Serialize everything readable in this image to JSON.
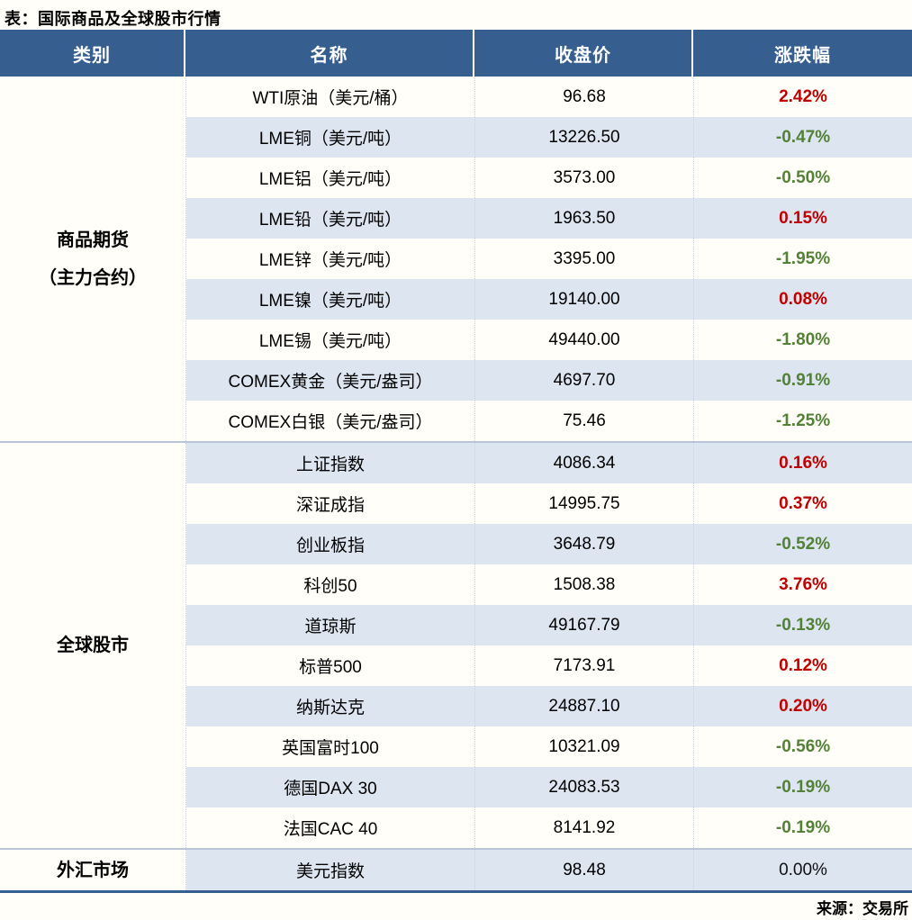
{
  "title": "表：国际商品及全球股市行情",
  "source": "来源：交易所",
  "colors": {
    "header_bg": "#365f8f",
    "stripe": "#dce5f0",
    "page_bg": "#fffef8",
    "up": "#c00000",
    "down": "#538135",
    "flat": "#111111",
    "bottom_border": "#365f91"
  },
  "table": {
    "headers": [
      "类别",
      "名称",
      "收盘价",
      "涨跌幅"
    ],
    "sections": [
      {
        "category_lines": [
          "商品期货",
          "（主力合约）"
        ],
        "rows": [
          {
            "name": "WTI原油（美元/桶）",
            "close": "96.68",
            "change": "2.42%",
            "dir": "up"
          },
          {
            "name": "LME铜（美元/吨）",
            "close": "13226.50",
            "change": "-0.47%",
            "dir": "down"
          },
          {
            "name": "LME铝（美元/吨）",
            "close": "3573.00",
            "change": "-0.50%",
            "dir": "down"
          },
          {
            "name": "LME铅（美元/吨）",
            "close": "1963.50",
            "change": "0.15%",
            "dir": "up"
          },
          {
            "name": "LME锌（美元/吨）",
            "close": "3395.00",
            "change": "-1.95%",
            "dir": "down"
          },
          {
            "name": "LME镍（美元/吨）",
            "close": "19140.00",
            "change": "0.08%",
            "dir": "up"
          },
          {
            "name": "LME锡（美元/吨）",
            "close": "49440.00",
            "change": "-1.80%",
            "dir": "down"
          },
          {
            "name": "COMEX黄金（美元/盎司）",
            "close": "4697.70",
            "change": "-0.91%",
            "dir": "down"
          },
          {
            "name": "COMEX白银（美元/盎司）",
            "close": "75.46",
            "change": "-1.25%",
            "dir": "down"
          }
        ]
      },
      {
        "category_lines": [
          "全球股市"
        ],
        "rows": [
          {
            "name": "上证指数",
            "close": "4086.34",
            "change": "0.16%",
            "dir": "up"
          },
          {
            "name": "深证成指",
            "close": "14995.75",
            "change": "0.37%",
            "dir": "up"
          },
          {
            "name": "创业板指",
            "close": "3648.79",
            "change": "-0.52%",
            "dir": "down"
          },
          {
            "name": "科创50",
            "close": "1508.38",
            "change": "3.76%",
            "dir": "up"
          },
          {
            "name": "道琼斯",
            "close": "49167.79",
            "change": "-0.13%",
            "dir": "down"
          },
          {
            "name": "标普500",
            "close": "7173.91",
            "change": "0.12%",
            "dir": "up"
          },
          {
            "name": "纳斯达克",
            "close": "24887.10",
            "change": "0.20%",
            "dir": "up"
          },
          {
            "name": "英国富时100",
            "close": "10321.09",
            "change": "-0.56%",
            "dir": "down"
          },
          {
            "name": "德国DAX 30",
            "close": "24083.53",
            "change": "-0.19%",
            "dir": "down"
          },
          {
            "name": "法国CAC 40",
            "close": "8141.92",
            "change": "-0.19%",
            "dir": "down"
          }
        ]
      },
      {
        "category_lines": [
          "外汇市场"
        ],
        "rows": [
          {
            "name": "美元指数",
            "close": "98.48",
            "change": "0.00%",
            "dir": "flat"
          }
        ]
      }
    ]
  },
  "chart_data": {
    "type": "table",
    "title": "表：国际商品及全球股市行情",
    "columns": [
      "类别",
      "名称",
      "收盘价",
      "涨跌幅"
    ],
    "rows": [
      [
        "商品期货（主力合约）",
        "WTI原油（美元/桶）",
        96.68,
        "2.42%"
      ],
      [
        "商品期货（主力合约）",
        "LME铜（美元/吨）",
        13226.5,
        "-0.47%"
      ],
      [
        "商品期货（主力合约）",
        "LME铝（美元/吨）",
        3573.0,
        "-0.50%"
      ],
      [
        "商品期货（主力合约）",
        "LME铅（美元/吨）",
        1963.5,
        "0.15%"
      ],
      [
        "商品期货（主力合约）",
        "LME锌（美元/吨）",
        3395.0,
        "-1.95%"
      ],
      [
        "商品期货（主力合约）",
        "LME镍（美元/吨）",
        19140.0,
        "0.08%"
      ],
      [
        "商品期货（主力合约）",
        "LME锡（美元/吨）",
        49440.0,
        "-1.80%"
      ],
      [
        "商品期货（主力合约）",
        "COMEX黄金（美元/盎司）",
        4697.7,
        "-0.91%"
      ],
      [
        "商品期货（主力合约）",
        "COMEX白银（美元/盎司）",
        75.46,
        "-1.25%"
      ],
      [
        "全球股市",
        "上证指数",
        4086.34,
        "0.16%"
      ],
      [
        "全球股市",
        "深证成指",
        14995.75,
        "0.37%"
      ],
      [
        "全球股市",
        "创业板指",
        3648.79,
        "-0.52%"
      ],
      [
        "全球股市",
        "科创50",
        1508.38,
        "3.76%"
      ],
      [
        "全球股市",
        "道琼斯",
        49167.79,
        "-0.13%"
      ],
      [
        "全球股市",
        "标普500",
        7173.91,
        "0.12%"
      ],
      [
        "全球股市",
        "纳斯达克",
        24887.1,
        "0.20%"
      ],
      [
        "全球股市",
        "英国富时100",
        10321.09,
        "-0.56%"
      ],
      [
        "全球股市",
        "德国DAX 30",
        24083.53,
        "-0.19%"
      ],
      [
        "全球股市",
        "法国CAC 40",
        8141.92,
        "-0.19%"
      ],
      [
        "外汇市场",
        "美元指数",
        98.48,
        "0.00%"
      ]
    ],
    "notes": "red = up (涨), green = down (跌), black = unchanged",
    "source": "来源：交易所"
  }
}
